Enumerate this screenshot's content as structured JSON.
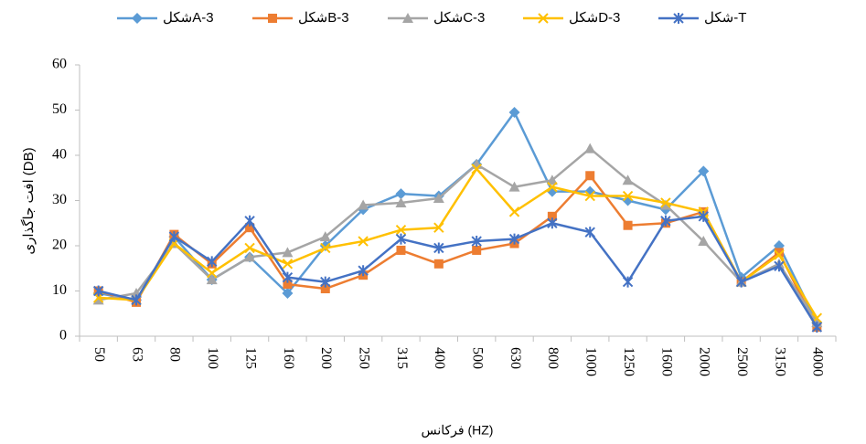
{
  "chart_data": {
    "type": "line",
    "x_label": "فرکانس (HZ)",
    "y_label": "افت جاگذاری (DB)",
    "categories": [
      "50",
      "63",
      "80",
      "100",
      "125",
      "160",
      "200",
      "250",
      "315",
      "400",
      "500",
      "630",
      "800",
      "1000",
      "1250",
      "1600",
      "2000",
      "2500",
      "3150",
      "4000"
    ],
    "series": [
      {
        "name": "شکلA-3",
        "color": "#5b9bd5",
        "marker": "diamond",
        "values": [
          9.5,
          8,
          22,
          12.5,
          17.5,
          9.5,
          20,
          28,
          31.5,
          31,
          38,
          49.5,
          32,
          32,
          30,
          28,
          36.5,
          13,
          20,
          3
        ]
      },
      {
        "name": "شکلB-3",
        "color": "#ed7d31",
        "marker": "square",
        "values": [
          10,
          7.5,
          22.5,
          16,
          24,
          11.5,
          10.5,
          13.5,
          19,
          16,
          19,
          20.5,
          26.5,
          35.5,
          24.5,
          25,
          27.5,
          12,
          18.5,
          2
        ]
      },
      {
        "name": "شکلC-3",
        "color": "#a5a5a5",
        "marker": "triangle",
        "values": [
          8,
          9.5,
          20.5,
          12.5,
          17.5,
          18.5,
          22,
          29,
          29.5,
          30.5,
          38,
          33,
          34.5,
          41.5,
          34.5,
          29,
          21,
          12,
          16,
          3
        ]
      },
      {
        "name": "شکلD-3",
        "color": "#ffc000",
        "marker": "x",
        "values": [
          8.5,
          8,
          20.5,
          14,
          19.5,
          16,
          19.5,
          21,
          23.5,
          24,
          37,
          27.5,
          33,
          31,
          31,
          29.5,
          27.5,
          12,
          18,
          4
        ]
      },
      {
        "name": "شکل-T",
        "color": "#4472c4",
        "marker": "star",
        "values": [
          10,
          8,
          22,
          16.5,
          25.5,
          13,
          12,
          14.5,
          21.5,
          19.5,
          21,
          21.5,
          25,
          23,
          12,
          25.5,
          26.5,
          12,
          15.5,
          2
        ]
      }
    ],
    "ylim": [
      0,
      60
    ],
    "yticks": [
      0,
      10,
      20,
      30,
      40,
      50,
      60
    ],
    "grid": false,
    "legend": "top"
  }
}
